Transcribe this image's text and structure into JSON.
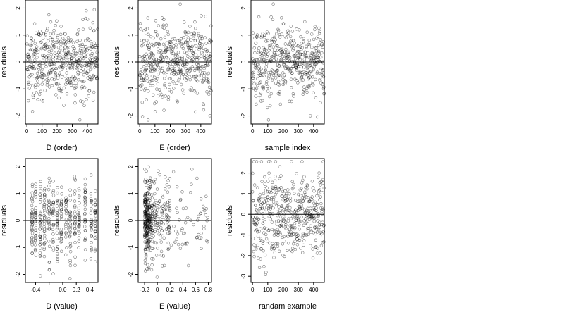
{
  "chart_data": [
    {
      "type": "scatter",
      "xlabel": "D (order)",
      "ylabel": "residuals",
      "xlim": [
        -10,
        470
      ],
      "ylim": [
        -2.3,
        2.3
      ],
      "xticks": [
        0,
        100,
        200,
        300,
        400
      ],
      "yticks": [
        -2,
        -1,
        0,
        1,
        2
      ],
      "hline": 0,
      "n_points": 470,
      "pattern": "uniform",
      "grid": false
    },
    {
      "type": "scatter",
      "xlabel": "E (order)",
      "ylabel": "residuals",
      "xlim": [
        -10,
        470
      ],
      "ylim": [
        -2.3,
        2.3
      ],
      "xticks": [
        0,
        100,
        200,
        300,
        400
      ],
      "yticks": [
        -2,
        -1,
        0,
        1,
        2
      ],
      "hline": 0,
      "n_points": 470,
      "pattern": "uniform",
      "grid": false
    },
    {
      "type": "scatter",
      "xlabel": "sample index",
      "ylabel": "residuals",
      "xlim": [
        -10,
        470
      ],
      "ylim": [
        -2.3,
        2.3
      ],
      "xticks": [
        0,
        100,
        200,
        300,
        400
      ],
      "yticks": [
        -2,
        -1,
        0,
        1,
        2
      ],
      "hline": 0,
      "n_points": 470,
      "pattern": "uniform",
      "grid": false
    },
    {
      "type": "scatter",
      "xlabel": "D (value)",
      "ylabel": "residuals",
      "xlim": [
        -0.55,
        0.52
      ],
      "ylim": [
        -2.3,
        2.3
      ],
      "xticks": [
        -0.4,
        -0.2,
        0.0,
        0.2,
        0.4
      ],
      "xticklabels": [
        "-0.4",
        "",
        "0.0",
        "0.2",
        "0.4"
      ],
      "yticks": [
        -2,
        -1,
        0,
        1,
        2
      ],
      "hline": 0,
      "n_points": 470,
      "pattern": "columns",
      "x_columns": [
        -0.45,
        -0.4,
        -0.33,
        -0.27,
        -0.2,
        -0.14,
        -0.08,
        -0.02,
        0.05,
        0.11,
        0.18,
        0.24,
        0.33,
        0.42,
        0.48
      ],
      "grid": false
    },
    {
      "type": "scatter",
      "xlabel": "E (value)",
      "ylabel": "residuals",
      "xlim": [
        -0.3,
        0.85
      ],
      "ylim": [
        -2.3,
        2.3
      ],
      "xticks": [
        -0.2,
        0.0,
        0.2,
        0.4,
        0.6,
        0.8
      ],
      "yticks": [
        -2,
        -1,
        0,
        1,
        2
      ],
      "hline": 0,
      "n_points": 470,
      "pattern": "skewed",
      "grid": false
    },
    {
      "type": "scatter",
      "xlabel": "randam example",
      "ylabel": "residuals",
      "xlim": [
        -10,
        470
      ],
      "ylim": [
        -3.3,
        2.7
      ],
      "xticks": [
        0,
        100,
        200,
        300,
        400
      ],
      "yticks": [
        -3,
        -2,
        -1,
        0,
        1,
        2
      ],
      "hline": 0,
      "n_points": 470,
      "pattern": "uniform-wide",
      "grid": false
    }
  ]
}
